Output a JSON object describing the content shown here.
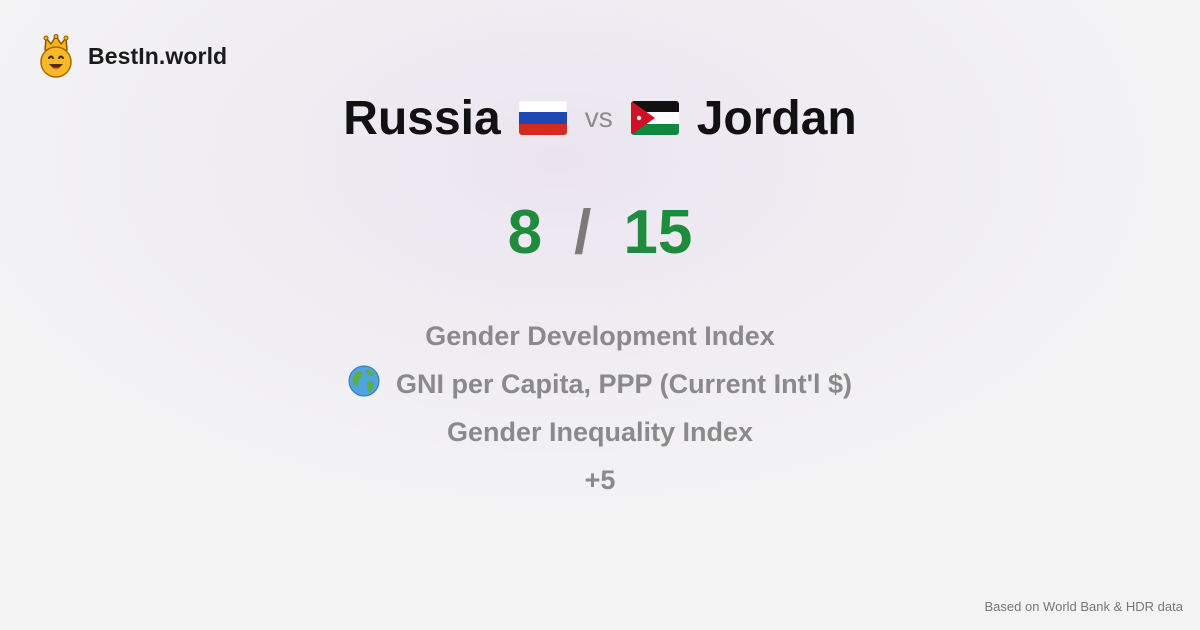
{
  "brand": {
    "name": "BestIn.world",
    "icon": "crowned-smiley-icon"
  },
  "comparison": {
    "country_left": "Russia",
    "vs_label": "vs",
    "country_right": "Jordan",
    "flag_left": "russia-flag-icon",
    "flag_right": "jordan-flag-icon"
  },
  "score": {
    "left": "8",
    "separator": "/",
    "right": "15",
    "color": "#1e8c3c"
  },
  "metrics": [
    {
      "label": "Gender Development Index"
    },
    {
      "label": "GNI per Capita, PPP (Current Int'l $)",
      "icon": "globe-icon"
    },
    {
      "label": "Gender Inequality Index"
    },
    {
      "label": "+5"
    }
  ],
  "footer": {
    "source_note": "Based on World Bank & HDR data"
  }
}
